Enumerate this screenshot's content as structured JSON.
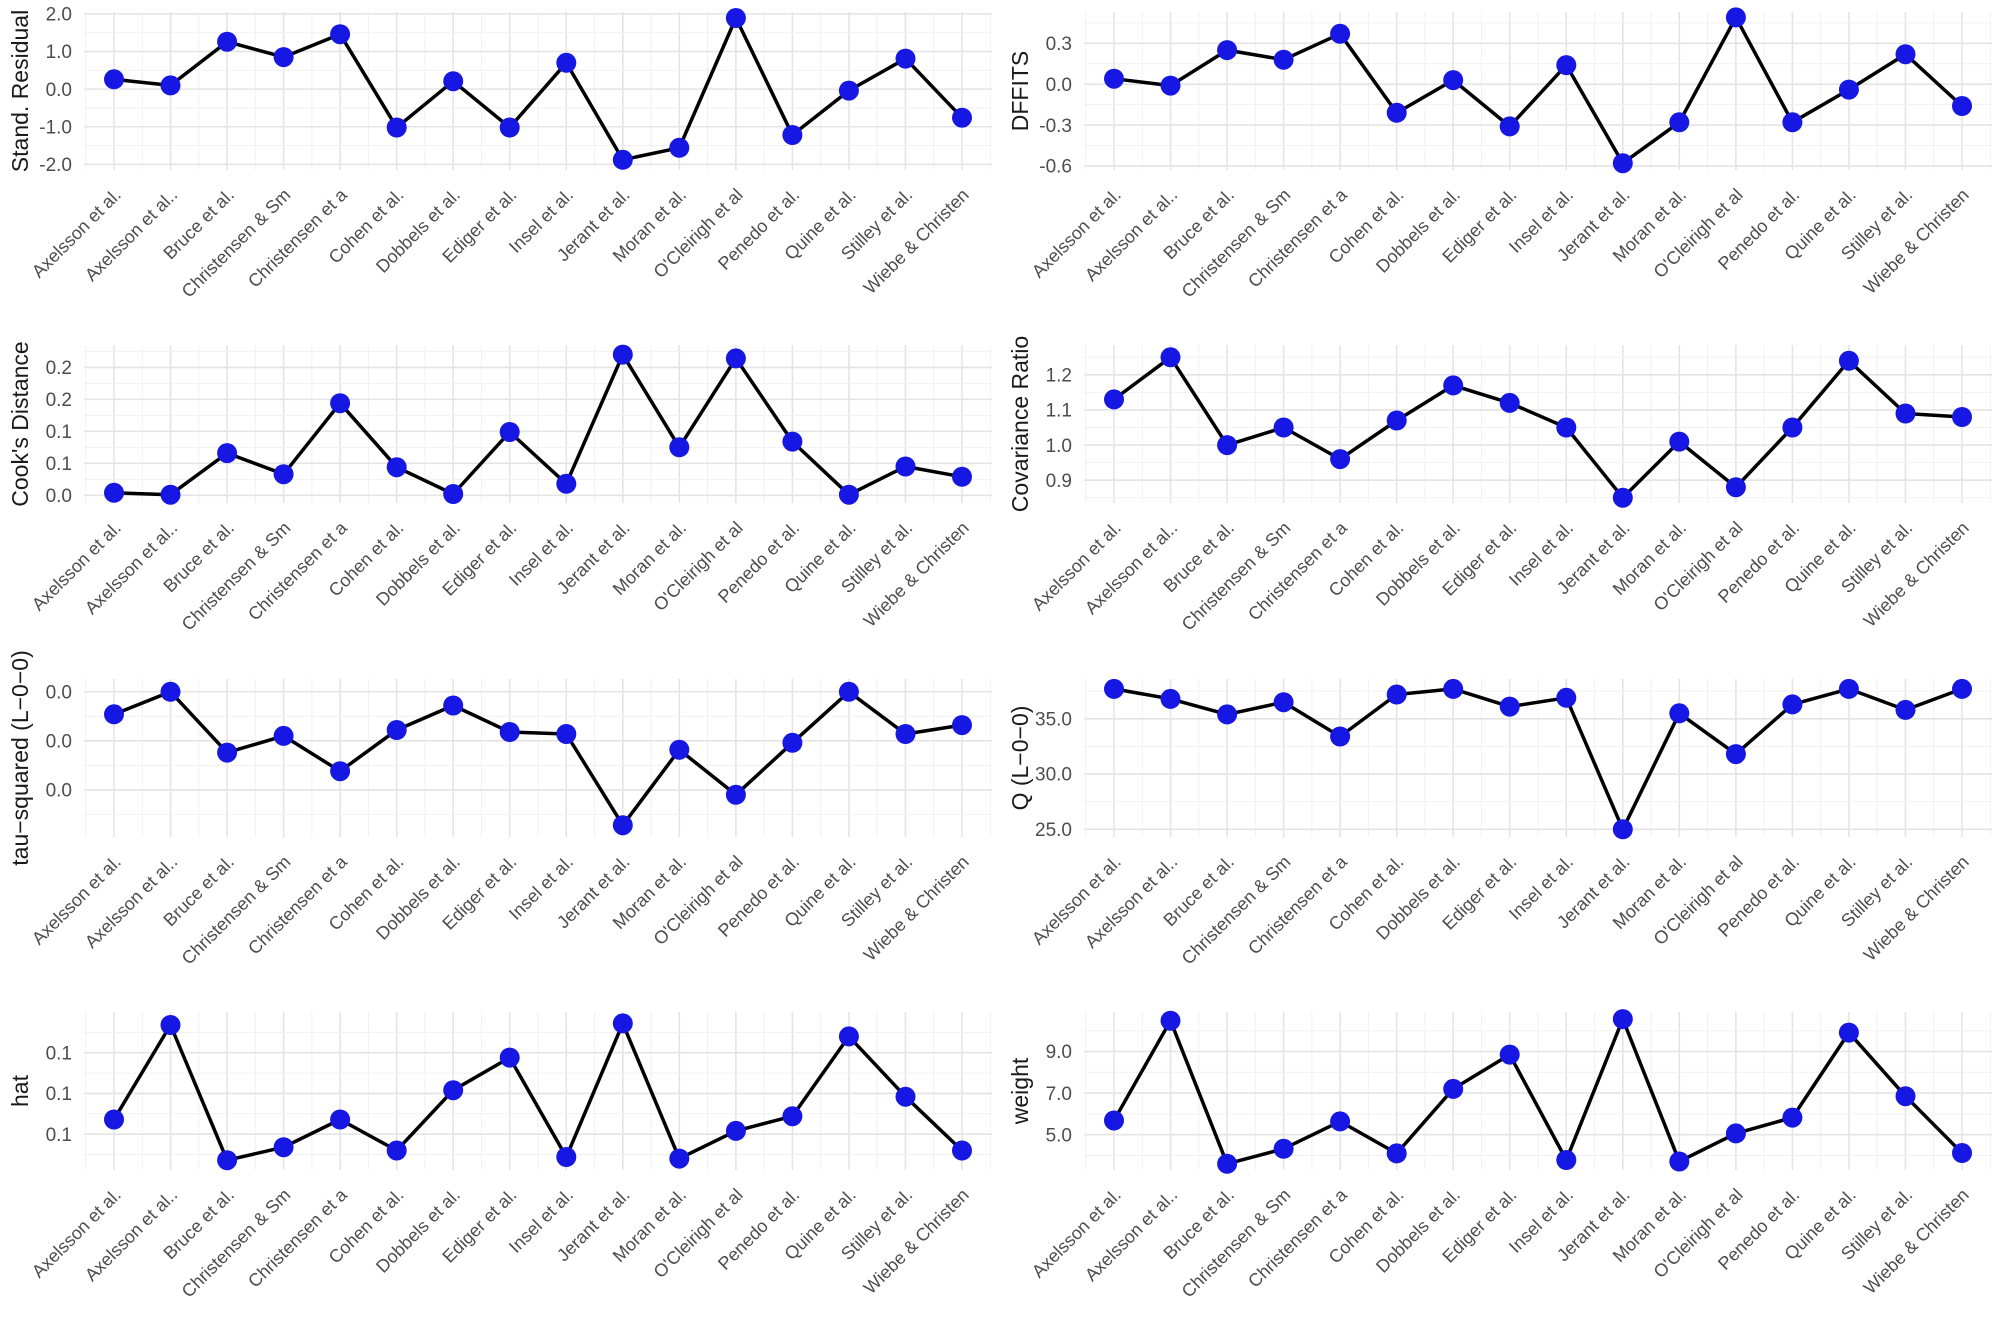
{
  "style": {
    "point_color": "#1717e3",
    "line_color": "#000000",
    "grid_major": "#e4e4e4",
    "grid_minor": "#f1f1f1",
    "tick_label_color": "#4d4d4d",
    "axis_title_color": "#1a1a1a",
    "background": "#ffffff"
  },
  "figure": {
    "rows": 4,
    "cols": 2,
    "description_labels": [
      "Stand. Residual",
      "DFFITS",
      "Cook's Distance",
      "Covariance Ratio",
      "tau−squared (L−0−0)",
      "Q (L−0−0)",
      "hat",
      "weight"
    ]
  },
  "categories": [
    "Axelsson et al.",
    "Axelsson et al..",
    "Bruce et al.",
    "Christensen & Sm",
    "Christensen et a",
    "Cohen et al.",
    "Dobbels et al.",
    "Ediger et al.",
    "Insel et al.",
    "Jerant et al.",
    "Moran et al.",
    "O'Cleirigh et al",
    "Penedo et al.",
    "Quine et al.",
    "Stilley et al.",
    "Wiebe & Christen"
  ],
  "chart_data": [
    {
      "type": "line",
      "ylabel": "Stand. Residual",
      "values": [
        0.26,
        0.1,
        1.26,
        0.85,
        1.46,
        -1.02,
        0.21,
        -1.02,
        0.7,
        -1.88,
        -1.56,
        1.89,
        -1.22,
        -0.04,
        0.81,
        -0.76
      ],
      "yticks": {
        "values": [
          2.0,
          1.0,
          0.0,
          -1.0,
          -2.0
        ],
        "labels": [
          "2.0",
          "1.0",
          "0.0",
          "-1.0",
          "-2.0"
        ]
      },
      "ylim": [
        -2.15,
        2.05
      ],
      "grid": true,
      "legend": "none"
    },
    {
      "type": "line",
      "ylabel": "DFFITS",
      "values": [
        0.04,
        -0.01,
        0.25,
        0.18,
        0.37,
        -0.21,
        0.03,
        -0.31,
        0.14,
        -0.58,
        -0.28,
        0.49,
        -0.28,
        -0.04,
        0.22,
        -0.16
      ],
      "yticks": {
        "values": [
          0.3,
          0.0,
          -0.3,
          -0.6
        ],
        "labels": [
          "0.3",
          "0.0",
          "-0.3",
          "-0.6"
        ]
      },
      "ylim": [
        -0.63,
        0.53
      ],
      "grid": true,
      "legend": "none"
    },
    {
      "type": "line",
      "ylabel": "Cook's Distance",
      "values": [
        0.004,
        0.001,
        0.066,
        0.033,
        0.144,
        0.044,
        0.002,
        0.099,
        0.018,
        0.22,
        0.075,
        0.214,
        0.084,
        0.001,
        0.045,
        0.029
      ],
      "yticks": {
        "values": [
          0.2,
          0.15,
          0.1,
          0.05,
          0.0
        ],
        "labels": [
          "0.2",
          "0.2",
          "0.1",
          "0.1",
          "0.0"
        ]
      },
      "ylim": [
        -0.012,
        0.235
      ],
      "grid": true,
      "legend": "none"
    },
    {
      "type": "line",
      "ylabel": "Covariance Ratio",
      "values": [
        1.13,
        1.25,
        1.0,
        1.05,
        0.96,
        1.07,
        1.17,
        1.12,
        1.05,
        0.85,
        1.01,
        0.88,
        1.05,
        1.24,
        1.09,
        1.08
      ],
      "yticks": {
        "values": [
          1.2,
          1.1,
          1.0,
          0.9
        ],
        "labels": [
          "1.2",
          "1.1",
          "1.0",
          "0.9"
        ]
      },
      "ylim": [
        0.835,
        1.285
      ],
      "grid": true,
      "legend": "none"
    },
    {
      "type": "line",
      "ylabel": "tau−squared (L−0−0)",
      "values": [
        0.0177,
        0.02,
        0.0138,
        0.0155,
        0.0119,
        0.0161,
        0.0186,
        0.0159,
        0.0157,
        0.0064,
        0.0141,
        0.0095,
        0.0148,
        0.02,
        0.0157,
        0.0166
      ],
      "yticks": {
        "values": [
          0.02,
          0.015,
          0.01
        ],
        "labels": [
          "0.0",
          "0.0",
          "0.0"
        ]
      },
      "ylim": [
        0.0052,
        0.0213
      ],
      "grid": true,
      "legend": "none"
    },
    {
      "type": "line",
      "ylabel": "Q (L−0−0)",
      "values": [
        37.7,
        36.8,
        35.4,
        36.5,
        33.4,
        37.2,
        37.7,
        36.1,
        36.9,
        25.0,
        35.5,
        31.8,
        36.3,
        37.7,
        35.8,
        37.7
      ],
      "yticks": {
        "values": [
          35.0,
          30.0,
          25.0
        ],
        "labels": [
          "35.0",
          "30.0",
          "25.0"
        ]
      },
      "ylim": [
        24.3,
        38.6
      ],
      "grid": true,
      "legend": "none"
    },
    {
      "type": "line",
      "ylabel": "hat",
      "values": [
        0.084,
        0.142,
        0.059,
        0.067,
        0.084,
        0.065,
        0.102,
        0.122,
        0.061,
        0.143,
        0.06,
        0.077,
        0.086,
        0.135,
        0.098,
        0.065
      ],
      "yticks": {
        "values": [
          0.125,
          0.1,
          0.075
        ],
        "labels": [
          "0.1",
          "0.1",
          "0.1"
        ]
      },
      "ylim": [
        0.053,
        0.15
      ],
      "grid": true,
      "legend": "none"
    },
    {
      "type": "line",
      "ylabel": "weight",
      "values": [
        5.68,
        10.48,
        3.6,
        4.32,
        5.64,
        4.1,
        7.2,
        8.85,
        3.78,
        10.56,
        3.71,
        5.06,
        5.82,
        9.91,
        6.85,
        4.12
      ],
      "yticks": {
        "values": [
          9.0,
          7.0,
          5.0
        ],
        "labels": [
          "9.0",
          "7.0",
          "5.0"
        ]
      },
      "ylim": [
        3.3,
        10.9
      ],
      "grid": true,
      "legend": "none"
    }
  ]
}
